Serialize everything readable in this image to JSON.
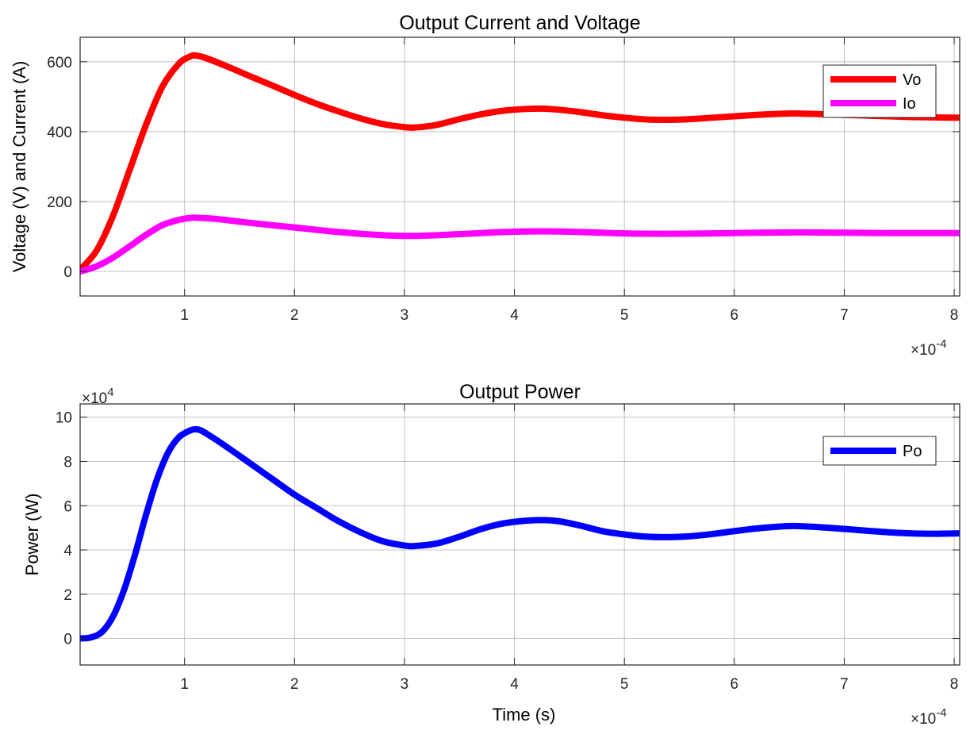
{
  "chart_data": [
    {
      "type": "line",
      "title": "Output Current and Voltage",
      "xlabel": "",
      "ylabel": "Voltage (V) and Current (A)",
      "xlim": [
        0.05,
        8.05
      ],
      "ylim": [
        -70,
        670
      ],
      "x_ticks": [
        1,
        2,
        3,
        4,
        5,
        6,
        7,
        8
      ],
      "x_tick_labels": [
        "1",
        "2",
        "3",
        "4",
        "5",
        "6",
        "7",
        "8"
      ],
      "y_ticks": [
        0,
        200,
        400,
        600
      ],
      "y_tick_labels": [
        "0",
        "200",
        "400",
        "600"
      ],
      "x_exponent": "×10",
      "x_exponent_power": "-4",
      "grid": true,
      "legend_position": "top-right",
      "series": [
        {
          "name": "Vo",
          "color": "#ff0000",
          "x": [
            0.05,
            0.2,
            0.35,
            0.5,
            0.65,
            0.8,
            0.95,
            1.05,
            1.1,
            1.2,
            1.4,
            1.6,
            1.8,
            2.0,
            2.2,
            2.4,
            2.6,
            2.8,
            3.0,
            3.1,
            3.3,
            3.5,
            3.7,
            3.9,
            4.1,
            4.25,
            4.4,
            4.6,
            4.8,
            5.0,
            5.2,
            5.4,
            5.6,
            5.8,
            6.0,
            6.2,
            6.4,
            6.55,
            6.8,
            7.0,
            7.2,
            7.4,
            7.6,
            7.8,
            8.05
          ],
          "y": [
            5,
            60,
            160,
            290,
            420,
            530,
            595,
            615,
            618,
            610,
            585,
            558,
            532,
            505,
            480,
            458,
            438,
            422,
            413,
            412,
            420,
            436,
            450,
            460,
            465,
            466,
            463,
            456,
            447,
            440,
            435,
            434,
            436,
            440,
            444,
            448,
            451,
            452,
            450,
            448,
            446,
            444,
            442,
            441,
            440
          ]
        },
        {
          "name": "Io",
          "color": "#ff00ff",
          "x": [
            0.05,
            0.2,
            0.35,
            0.5,
            0.65,
            0.8,
            0.95,
            1.05,
            1.1,
            1.3,
            1.6,
            2.0,
            2.4,
            2.8,
            3.1,
            3.5,
            3.9,
            4.25,
            4.6,
            5.0,
            5.4,
            5.8,
            6.2,
            6.55,
            7.0,
            7.4,
            7.8,
            8.05
          ],
          "y": [
            0,
            15,
            40,
            72,
            105,
            133,
            148,
            153,
            154,
            150,
            139,
            126,
            113,
            104,
            102,
            107,
            113,
            115,
            113,
            109,
            108,
            109,
            111,
            112,
            111,
            110,
            110,
            110
          ]
        }
      ]
    },
    {
      "type": "line",
      "title": "Output Power",
      "xlabel": "Time (s)",
      "ylabel": "Power (W)",
      "xlim": [
        0.05,
        8.05
      ],
      "ylim": [
        -1.2,
        10.6
      ],
      "x_ticks": [
        1,
        2,
        3,
        4,
        5,
        6,
        7,
        8
      ],
      "x_tick_labels": [
        "1",
        "2",
        "3",
        "4",
        "5",
        "6",
        "7",
        "8"
      ],
      "y_ticks": [
        0,
        2,
        4,
        6,
        8,
        10
      ],
      "y_tick_labels": [
        "0",
        "2",
        "4",
        "6",
        "8",
        "10"
      ],
      "x_exponent": "×10",
      "x_exponent_power": "-4",
      "y_exponent": "×10",
      "y_exponent_power": "4",
      "grid": true,
      "legend_position": "top-right",
      "series": [
        {
          "name": "Po",
          "color": "#0000ff",
          "x": [
            0.05,
            0.15,
            0.25,
            0.35,
            0.45,
            0.55,
            0.65,
            0.75,
            0.85,
            0.95,
            1.05,
            1.1,
            1.15,
            1.25,
            1.4,
            1.6,
            1.8,
            2.0,
            2.2,
            2.4,
            2.6,
            2.8,
            3.0,
            3.1,
            3.3,
            3.5,
            3.7,
            3.9,
            4.1,
            4.25,
            4.4,
            4.6,
            4.8,
            5.0,
            5.2,
            5.4,
            5.6,
            5.8,
            6.0,
            6.2,
            6.4,
            6.55,
            6.8,
            7.0,
            7.2,
            7.4,
            7.6,
            7.8,
            8.05
          ],
          "y": [
            0.0,
            0.05,
            0.3,
            1.0,
            2.2,
            3.8,
            5.6,
            7.2,
            8.4,
            9.1,
            9.4,
            9.45,
            9.4,
            9.1,
            8.6,
            7.9,
            7.2,
            6.5,
            5.9,
            5.3,
            4.8,
            4.4,
            4.2,
            4.18,
            4.3,
            4.6,
            4.95,
            5.2,
            5.32,
            5.35,
            5.3,
            5.1,
            4.85,
            4.7,
            4.6,
            4.58,
            4.62,
            4.72,
            4.85,
            4.97,
            5.05,
            5.08,
            5.02,
            4.95,
            4.87,
            4.8,
            4.75,
            4.73,
            4.75
          ]
        }
      ]
    }
  ]
}
